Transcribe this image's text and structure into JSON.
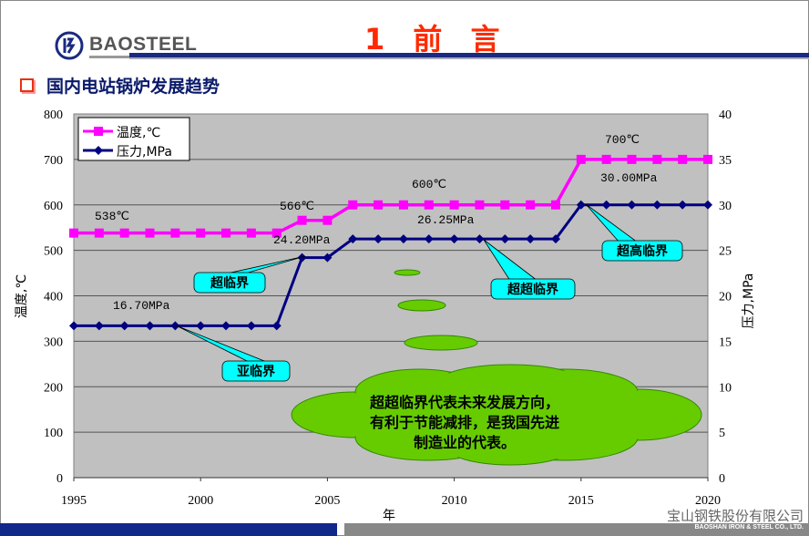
{
  "header": {
    "logo_text": "BAOSTEEL",
    "title": "1 前 言",
    "subtitle": "国内电站锅炉发展趋势"
  },
  "footer": {
    "company_cn": "宝山钢铁股份有限公司",
    "company_en": "BAOSHAN IRON & STEEL CO., LTD."
  },
  "chart_data": {
    "type": "line",
    "xlabel": "年",
    "ylabel": "温度,℃",
    "y2label": "压力,MPa",
    "xlim": [
      1995,
      2020
    ],
    "ylim": [
      0,
      800
    ],
    "y2lim": [
      0,
      40
    ],
    "xticks": [
      "1995",
      "2000",
      "2005",
      "2010",
      "2015",
      "2020"
    ],
    "yticks": [
      "0",
      "100",
      "200",
      "300",
      "400",
      "500",
      "600",
      "700",
      "800"
    ],
    "y2ticks": [
      "0",
      "5",
      "10",
      "15",
      "20",
      "25",
      "30",
      "35",
      "40"
    ],
    "grid": true,
    "legend": "top-left",
    "x": [
      1995,
      1996,
      1997,
      1998,
      1999,
      2000,
      2001,
      2002,
      2003,
      2004,
      2005,
      2006,
      2007,
      2008,
      2009,
      2010,
      2011,
      2012,
      2013,
      2014,
      2015,
      2016,
      2017,
      2018,
      2019,
      2020
    ],
    "series": [
      {
        "name": "温度,℃",
        "axis": "left",
        "color": "#ff00ff",
        "values": [
          538,
          538,
          538,
          538,
          538,
          538,
          538,
          538,
          538,
          566,
          566,
          600,
          600,
          600,
          600,
          600,
          600,
          600,
          600,
          600,
          700,
          700,
          700,
          700,
          700,
          700
        ]
      },
      {
        "name": "压力,MPa",
        "axis": "right",
        "color": "#000080",
        "values": [
          16.7,
          16.7,
          16.7,
          16.7,
          16.7,
          16.7,
          16.7,
          16.7,
          16.7,
          24.2,
          24.2,
          26.25,
          26.25,
          26.25,
          26.25,
          26.25,
          26.25,
          26.25,
          26.25,
          26.25,
          30,
          30,
          30,
          30,
          30,
          30
        ]
      }
    ],
    "annotations": {
      "t538": "538℃",
      "t566": "566℃",
      "t600": "600℃",
      "t700": "700℃",
      "p167": "16.70MPa",
      "p242": "24.20MPa",
      "p2625": "26.25MPa",
      "p30": "30.00MPa",
      "subcritical": "亚临界",
      "supercritical": "超临界",
      "ultra_supercritical": "超超临界",
      "advanced_ultra": "超高临界",
      "cloud": [
        "超超临界代表未来发展方向，",
        "有利于节能减排，是我国先进",
        "制造业的代表。"
      ]
    }
  }
}
